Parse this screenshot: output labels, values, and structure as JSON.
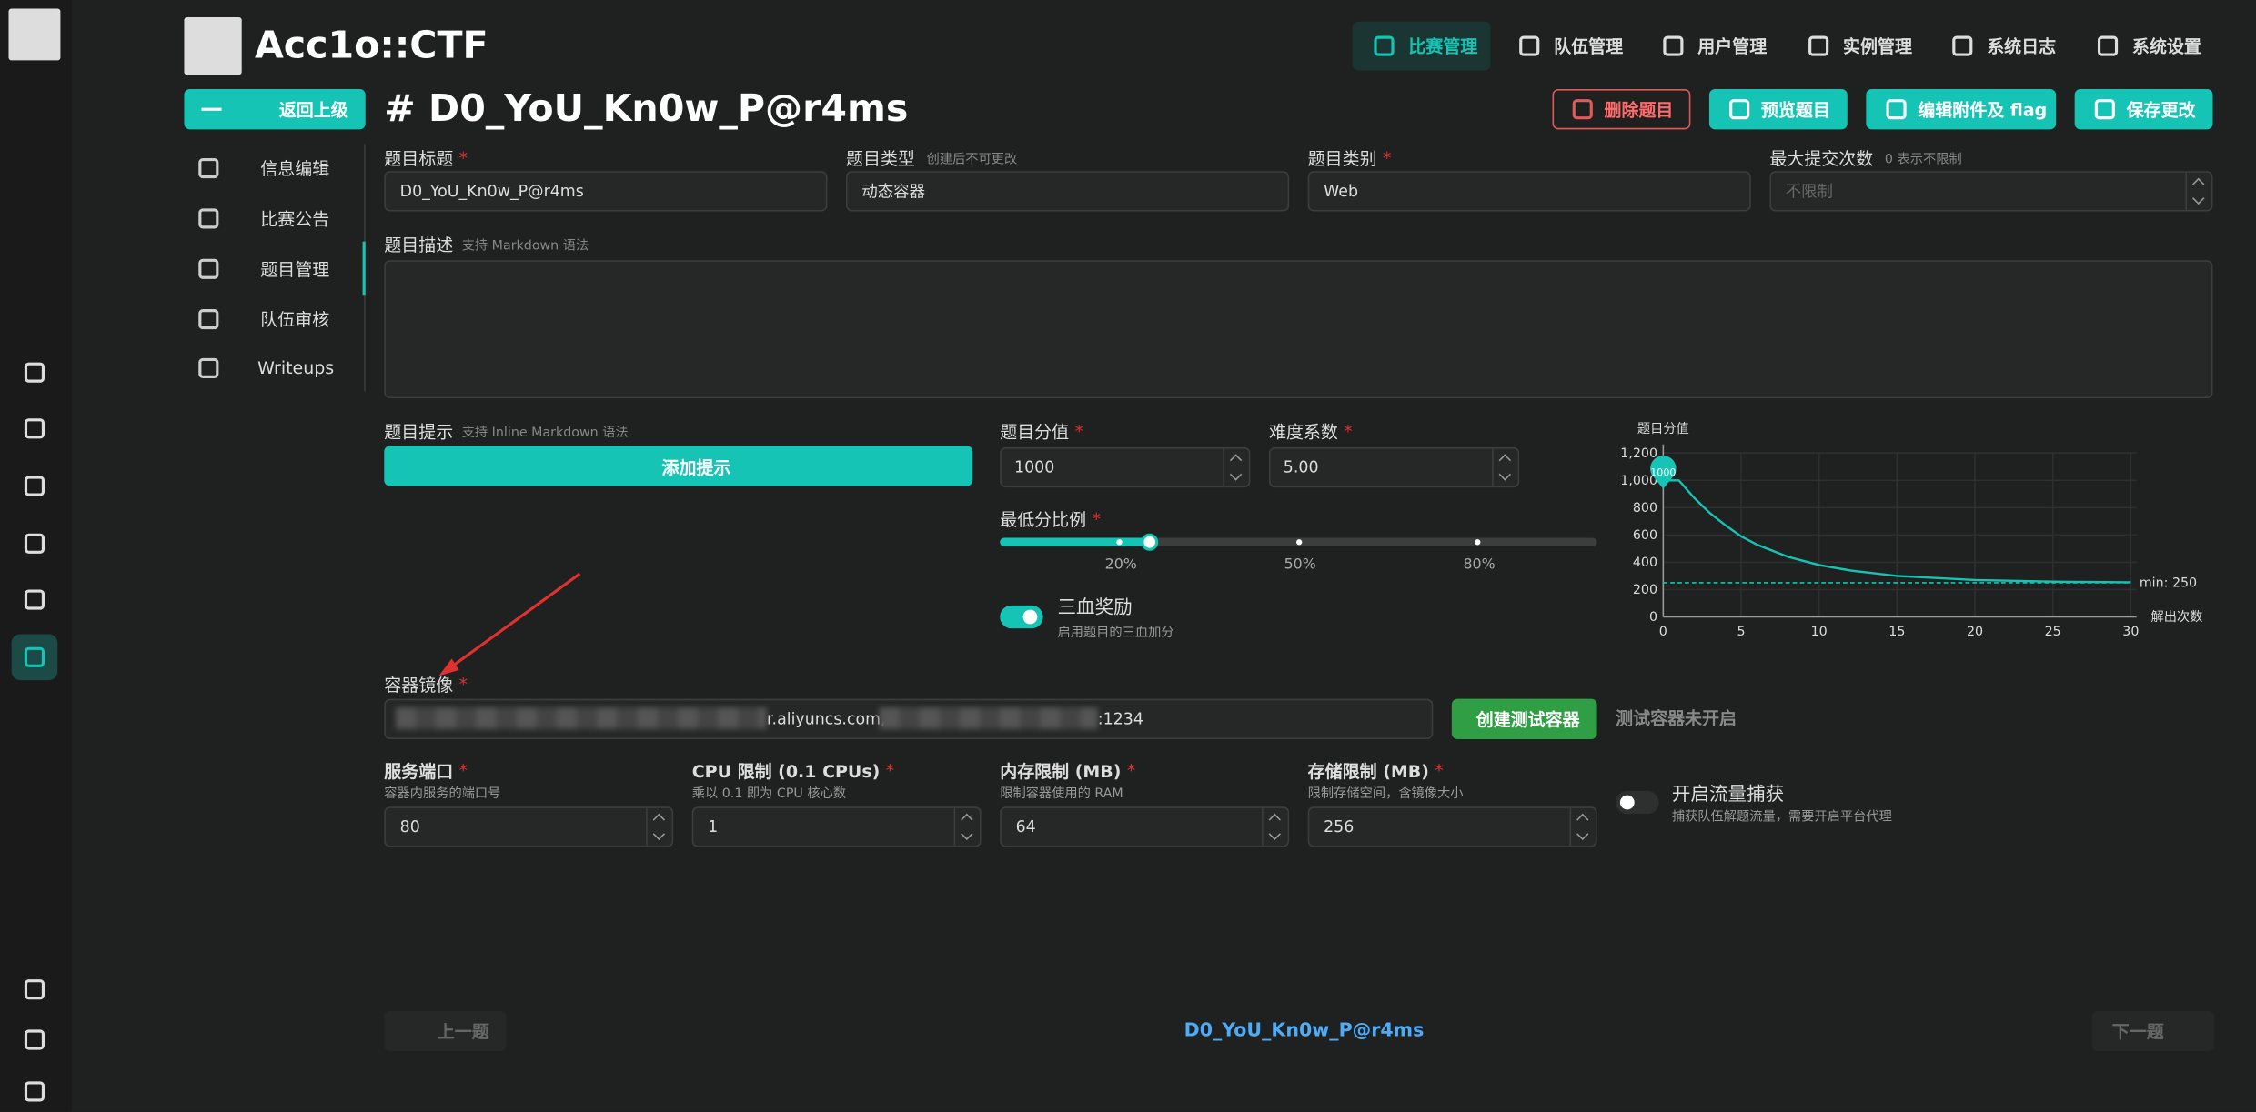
{
  "brand": "Acc1o::CTF",
  "nav": [
    "比赛管理",
    "队伍管理",
    "用户管理",
    "实例管理",
    "系统日志",
    "系统设置"
  ],
  "back_button": "返回上级",
  "title": "# D0_YoU_Kn0w_P@r4ms",
  "actions": [
    "删除题目",
    "预览题目",
    "编辑附件及 flag",
    "保存更改"
  ],
  "side_menu": [
    "信息编辑",
    "比赛公告",
    "题目管理",
    "队伍审核",
    "Writeups"
  ],
  "required_mark": "*",
  "form": {
    "challenge_title": {
      "label": "题目标题",
      "value": "D0_YoU_Kn0w_P@r4ms"
    },
    "challenge_type": {
      "label": "题目类型",
      "hint": "创建后不可更改",
      "value": "动态容器"
    },
    "category": {
      "label": "题目类别",
      "value": "Web"
    },
    "max_attempts": {
      "label": "最大提交次数",
      "hint": "0 表示不限制",
      "placeholder": "不限制"
    },
    "description": {
      "label": "题目描述",
      "hint": "支持 Markdown 语法"
    },
    "hints": {
      "label": "题目提示",
      "hint": "支持 Inline Markdown 语法",
      "button": "添加提示"
    },
    "score": {
      "label": "题目分值",
      "value": "1000"
    },
    "difficulty": {
      "label": "难度系数",
      "value": "5.00"
    },
    "min_score_ratio": {
      "label": "最低分比例",
      "value": 25,
      "lim": [
        0,
        100
      ],
      "marks": [
        {
          "value": 20,
          "label": "20%"
        },
        {
          "value": 50,
          "label": "50%"
        },
        {
          "value": 80,
          "label": "80%"
        }
      ]
    },
    "blood_bonus": {
      "label": "三血奖励",
      "desc": "启用题目的三血加分"
    },
    "container_image": {
      "label": "容器镜像",
      "visible_parts": [
        "r.aliyuncs.com,",
        ":1234"
      ],
      "button": "创建测试容器",
      "status": "测试容器未开启"
    },
    "limits": [
      {
        "label": "服务端口",
        "desc": "容器内服务的端口号",
        "value": "80"
      },
      {
        "label": "CPU 限制 (0.1 CPUs)",
        "desc": "乘以 0.1 即为 CPU 核心数",
        "value": "1"
      },
      {
        "label": "内存限制 (MB)",
        "desc": "限制容器使用的 RAM",
        "value": "64"
      },
      {
        "label": "存储限制 (MB)",
        "desc": "限制存储空间，含镜像大小",
        "value": "256"
      }
    ],
    "traffic_capture": {
      "label": "开启流量捕获",
      "desc": "捕获队伍解题流量，需要开启平台代理"
    },
    "score_chart": {
      "type": "line",
      "title": "题目分值",
      "x_label": "解出次数",
      "color": "#15c4b4",
      "x": [
        0,
        1,
        2,
        3,
        4,
        5,
        6,
        8,
        10,
        12,
        15,
        20,
        25,
        30
      ],
      "values": [
        1000,
        1000,
        870,
        760,
        670,
        590,
        530,
        440,
        380,
        340,
        300,
        270,
        258,
        253
      ],
      "xlim": [
        0,
        30
      ],
      "ylim": [
        0,
        1200
      ],
      "xticks": [
        0,
        5,
        10,
        15,
        20,
        25,
        30
      ],
      "yticks": [
        0,
        200,
        400,
        600,
        800,
        {
          "value": 1000,
          "label": "1,000"
        },
        {
          "value": 1200,
          "label": "1,200"
        }
      ],
      "min_line": {
        "value": 250,
        "label": "min: 250"
      },
      "marker": 1000
    }
  },
  "footer": {
    "prev": "上一题",
    "current": "D0_YoU_Kn0w_P@r4ms",
    "next": "下一题"
  }
}
